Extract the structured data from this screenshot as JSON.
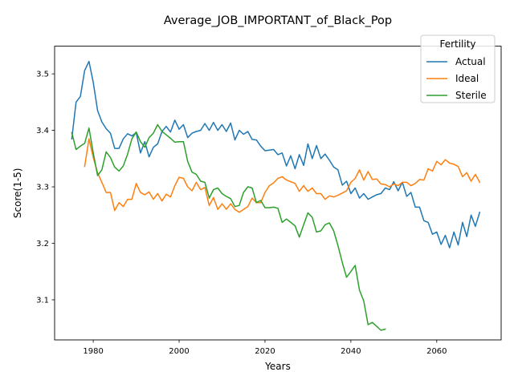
{
  "chart_data": {
    "type": "line",
    "title": "Average_JOB_IMPORTANT_of_Black_Pop",
    "xlabel": "Years",
    "ylabel": "Score(1-5)",
    "xlim": [
      1971,
      2075
    ],
    "ylim": [
      3.029,
      3.549
    ],
    "xticks": [
      1980,
      2000,
      2020,
      2040,
      2060
    ],
    "yticks": [
      3.1,
      3.2,
      3.3,
      3.4,
      3.5
    ],
    "grid": false,
    "legend": {
      "title": "Fertility",
      "placement": "top-right"
    },
    "series": [
      {
        "name": "Actual",
        "color": "#1f77b4",
        "x": [
          1975,
          1976,
          1977,
          1978,
          1979,
          1980,
          1981,
          1982,
          1983,
          1984,
          1985,
          1986,
          1987,
          1988,
          1989,
          1990,
          1991,
          1992,
          1993,
          1994,
          1995,
          1996,
          1997,
          1998,
          1999,
          2000,
          2001,
          2002,
          2003,
          2004,
          2005,
          2006,
          2007,
          2008,
          2009,
          2010,
          2011,
          2012,
          2013,
          2014,
          2015,
          2016,
          2017,
          2018,
          2019,
          2020,
          2021,
          2022,
          2023,
          2024,
          2025,
          2026,
          2027,
          2028,
          2029,
          2030,
          2031,
          2032,
          2033,
          2034,
          2035,
          2036,
          2037,
          2038,
          2039,
          2040,
          2041,
          2042,
          2043,
          2044,
          2045,
          2046,
          2047,
          2048,
          2049,
          2050,
          2051,
          2052,
          2053,
          2054,
          2055,
          2056,
          2057,
          2058,
          2059,
          2060,
          2061,
          2062,
          2063,
          2064,
          2065,
          2066,
          2067,
          2068,
          2069,
          2070
        ],
        "y": [
          3.385,
          3.45,
          3.46,
          3.506,
          3.522,
          3.485,
          3.435,
          3.415,
          3.403,
          3.395,
          3.368,
          3.368,
          3.385,
          3.394,
          3.39,
          3.396,
          3.36,
          3.38,
          3.353,
          3.37,
          3.376,
          3.398,
          3.407,
          3.397,
          3.418,
          3.402,
          3.41,
          3.387,
          3.395,
          3.398,
          3.4,
          3.412,
          3.4,
          3.414,
          3.4,
          3.41,
          3.398,
          3.413,
          3.383,
          3.4,
          3.393,
          3.398,
          3.384,
          3.383,
          3.372,
          3.364,
          3.365,
          3.366,
          3.357,
          3.36,
          3.337,
          3.355,
          3.332,
          3.357,
          3.338,
          3.376,
          3.35,
          3.373,
          3.35,
          3.358,
          3.347,
          3.335,
          3.33,
          3.303,
          3.31,
          3.288,
          3.298,
          3.28,
          3.288,
          3.278,
          3.282,
          3.286,
          3.288,
          3.298,
          3.295,
          3.309,
          3.293,
          3.308,
          3.283,
          3.29,
          3.264,
          3.264,
          3.24,
          3.237,
          3.216,
          3.22,
          3.198,
          3.214,
          3.192,
          3.22,
          3.197,
          3.237,
          3.212,
          3.25,
          3.23,
          3.255
        ]
      },
      {
        "name": "Ideal",
        "color": "#ff7f0e",
        "x": [
          1978,
          1979,
          1980,
          1981,
          1982,
          1983,
          1984,
          1985,
          1986,
          1987,
          1988,
          1989,
          1990,
          1991,
          1992,
          1993,
          1994,
          1995,
          1996,
          1997,
          1998,
          1999,
          2000,
          2001,
          2002,
          2003,
          2004,
          2005,
          2006,
          2007,
          2008,
          2009,
          2010,
          2011,
          2012,
          2013,
          2014,
          2015,
          2016,
          2017,
          2018,
          2019,
          2020,
          2021,
          2022,
          2023,
          2024,
          2025,
          2026,
          2027,
          2028,
          2029,
          2030,
          2031,
          2032,
          2033,
          2034,
          2035,
          2036,
          2037,
          2038,
          2039,
          2040,
          2041,
          2042,
          2043,
          2044,
          2045,
          2046,
          2047,
          2048,
          2049,
          2050,
          2051,
          2052,
          2053,
          2054,
          2055,
          2056,
          2057,
          2058,
          2059,
          2060,
          2061,
          2062,
          2063,
          2064,
          2065,
          2066,
          2067,
          2068,
          2069,
          2070
        ],
        "y": [
          3.336,
          3.385,
          3.352,
          3.325,
          3.308,
          3.29,
          3.29,
          3.258,
          3.272,
          3.265,
          3.278,
          3.278,
          3.306,
          3.29,
          3.286,
          3.291,
          3.278,
          3.288,
          3.275,
          3.287,
          3.282,
          3.302,
          3.317,
          3.315,
          3.3,
          3.293,
          3.308,
          3.295,
          3.299,
          3.267,
          3.281,
          3.26,
          3.27,
          3.26,
          3.27,
          3.26,
          3.255,
          3.26,
          3.265,
          3.28,
          3.272,
          3.272,
          3.29,
          3.302,
          3.307,
          3.315,
          3.318,
          3.312,
          3.309,
          3.306,
          3.292,
          3.302,
          3.292,
          3.298,
          3.288,
          3.288,
          3.278,
          3.284,
          3.282,
          3.285,
          3.289,
          3.293,
          3.308,
          3.315,
          3.33,
          3.312,
          3.327,
          3.313,
          3.314,
          3.305,
          3.304,
          3.3,
          3.305,
          3.302,
          3.308,
          3.308,
          3.302,
          3.306,
          3.313,
          3.312,
          3.332,
          3.328,
          3.345,
          3.339,
          3.348,
          3.342,
          3.34,
          3.336,
          3.318,
          3.325,
          3.31,
          3.322,
          3.308
        ]
      },
      {
        "name": "Sterile",
        "color": "#2ca02c",
        "x": [
          1975,
          1976,
          1977,
          1978,
          1979,
          1980,
          1981,
          1982,
          1983,
          1984,
          1985,
          1986,
          1987,
          1988,
          1989,
          1990,
          1991,
          1992,
          1993,
          1994,
          1995,
          1996,
          1997,
          1998,
          1999,
          2000,
          2001,
          2002,
          2003,
          2004,
          2005,
          2006,
          2007,
          2008,
          2009,
          2010,
          2011,
          2012,
          2013,
          2014,
          2015,
          2016,
          2017,
          2018,
          2019,
          2020,
          2021,
          2022,
          2023,
          2024,
          2025,
          2026,
          2027,
          2028,
          2029,
          2030,
          2031,
          2032,
          2033,
          2034,
          2035,
          2036,
          2037,
          2038,
          2039,
          2040,
          2041,
          2042,
          2043,
          2044,
          2045,
          2046,
          2047,
          2048
        ],
        "y": [
          3.396,
          3.366,
          3.372,
          3.377,
          3.404,
          3.36,
          3.32,
          3.33,
          3.362,
          3.352,
          3.335,
          3.328,
          3.337,
          3.358,
          3.385,
          3.397,
          3.38,
          3.37,
          3.387,
          3.395,
          3.41,
          3.398,
          3.392,
          3.386,
          3.379,
          3.38,
          3.38,
          3.345,
          3.326,
          3.322,
          3.31,
          3.308,
          3.28,
          3.295,
          3.298,
          3.288,
          3.283,
          3.279,
          3.265,
          3.267,
          3.29,
          3.3,
          3.298,
          3.272,
          3.276,
          3.263,
          3.263,
          3.264,
          3.262,
          3.237,
          3.243,
          3.237,
          3.231,
          3.211,
          3.233,
          3.254,
          3.246,
          3.22,
          3.222,
          3.233,
          3.236,
          3.222,
          3.196,
          3.166,
          3.14,
          3.15,
          3.161,
          3.117,
          3.098,
          3.056,
          3.06,
          3.053,
          3.046,
          3.048
        ]
      }
    ]
  }
}
